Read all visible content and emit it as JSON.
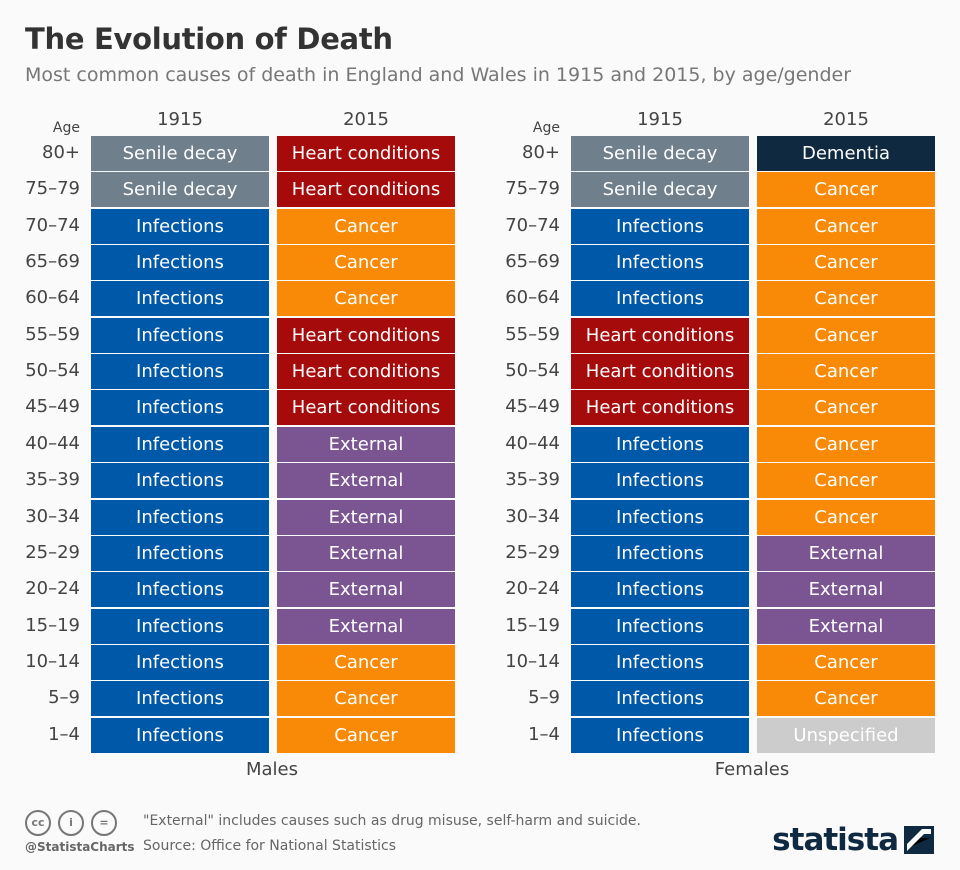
{
  "title": "The Evolution of Death",
  "subtitle": "Most common causes of death in England and Wales in 1915 and 2015, by age/gender",
  "colors": {
    "Senile decay": "#6f7f8c",
    "Heart conditions": "#a50b0b",
    "Infections": "#0058a8",
    "Cancer": "#f88a07",
    "External": "#7b5592",
    "Dementia": "#0f2a40",
    "Unspecified": "#cccccc"
  },
  "chart_data": {
    "type": "table",
    "age_label": "Age",
    "ages": [
      "80+",
      "75–79",
      "70–74",
      "65–69",
      "60–64",
      "55–59",
      "50–54",
      "45–49",
      "40–44",
      "35–39",
      "30–34",
      "25–29",
      "20–24",
      "15–19",
      "10–14",
      "5–9",
      "1–4"
    ],
    "groups": [
      {
        "name": "Males",
        "columns": [
          {
            "year": "1915",
            "values": [
              "Senile decay",
              "Senile decay",
              "Infections",
              "Infections",
              "Infections",
              "Infections",
              "Infections",
              "Infections",
              "Infections",
              "Infections",
              "Infections",
              "Infections",
              "Infections",
              "Infections",
              "Infections",
              "Infections",
              "Infections"
            ]
          },
          {
            "year": "2015",
            "values": [
              "Heart conditions",
              "Heart conditions",
              "Cancer",
              "Cancer",
              "Cancer",
              "Heart conditions",
              "Heart conditions",
              "Heart conditions",
              "External",
              "External",
              "External",
              "External",
              "External",
              "External",
              "Cancer",
              "Cancer",
              "Cancer"
            ]
          }
        ]
      },
      {
        "name": "Females",
        "columns": [
          {
            "year": "1915",
            "values": [
              "Senile decay",
              "Senile decay",
              "Infections",
              "Infections",
              "Infections",
              "Heart conditions",
              "Heart conditions",
              "Heart conditions",
              "Infections",
              "Infections",
              "Infections",
              "Infections",
              "Infections",
              "Infections",
              "Infections",
              "Infections",
              "Infections"
            ]
          },
          {
            "year": "2015",
            "values": [
              "Dementia",
              "Cancer",
              "Cancer",
              "Cancer",
              "Cancer",
              "Cancer",
              "Cancer",
              "Cancer",
              "Cancer",
              "Cancer",
              "Cancer",
              "External",
              "External",
              "External",
              "Cancer",
              "Cancer",
              "Unspecified"
            ]
          }
        ]
      }
    ]
  },
  "footer": {
    "note": "\"External\" includes causes such as drug misuse, self-harm and suicide.",
    "source": "Source: Office for National Statistics",
    "handle": "@StatistaCharts",
    "logo": "statista",
    "cc_icons": [
      "cc",
      "by",
      "nd"
    ]
  }
}
